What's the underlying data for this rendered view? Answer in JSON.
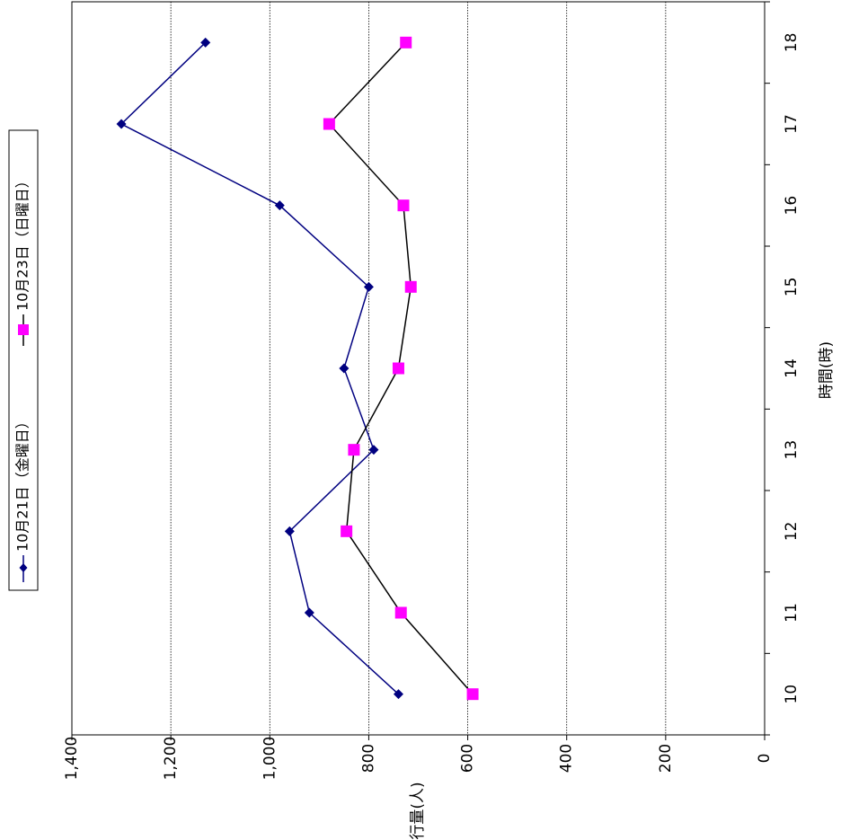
{
  "chart_data": {
    "type": "line",
    "orientation": "rotated-90-clockwise",
    "xlabel": "時間(時)",
    "ylabel": "通行量(人)",
    "categories": [
      "10",
      "11",
      "12",
      "13",
      "14",
      "15",
      "16",
      "17",
      "18"
    ],
    "ylim": [
      0,
      1400
    ],
    "yticks": [
      "0",
      "200",
      "400",
      "600",
      "800",
      "1,000",
      "1,200",
      "1,400"
    ],
    "grid": true,
    "legend_position": "top",
    "series": [
      {
        "name": "10月21日（金曜日）",
        "color": "#000080",
        "marker": "diamond",
        "values": [
          740,
          920,
          960,
          790,
          850,
          800,
          980,
          1300,
          1130
        ]
      },
      {
        "name": "10月23日（日曜日）",
        "color": "#000000",
        "marker_color": "#FF00FF",
        "marker": "square",
        "values": [
          590,
          735,
          845,
          830,
          740,
          715,
          730,
          880,
          725
        ]
      }
    ]
  }
}
